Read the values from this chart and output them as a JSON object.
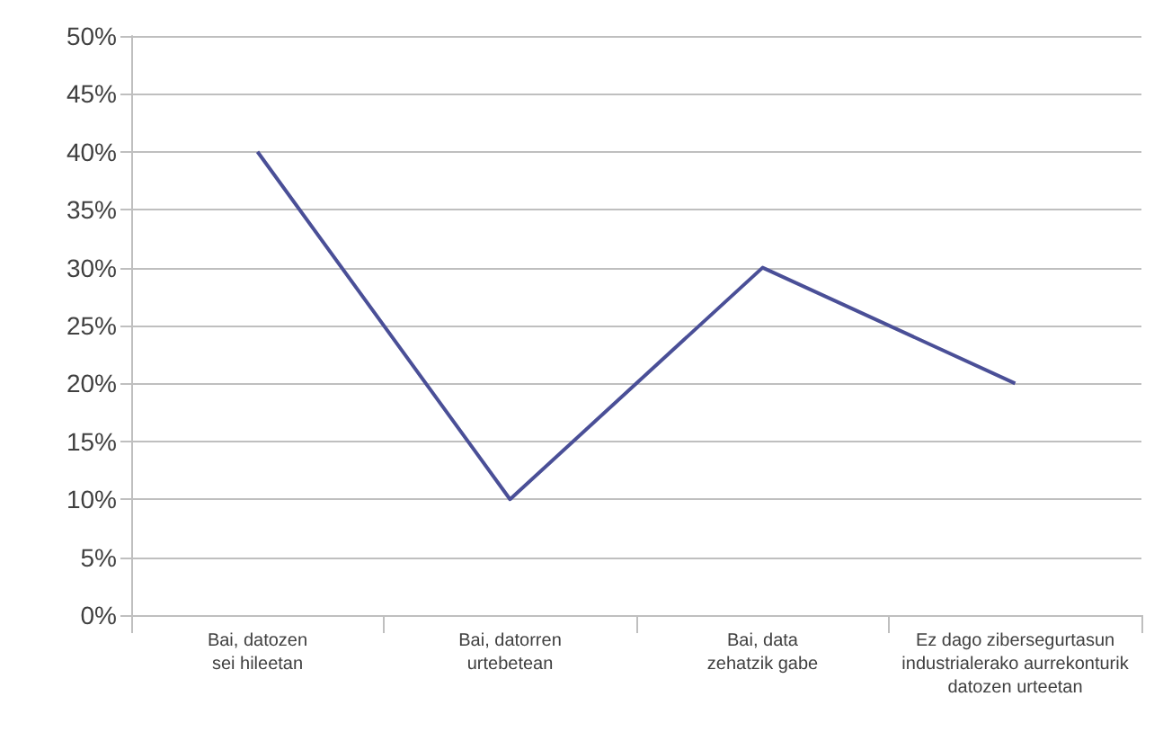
{
  "chart_data": {
    "type": "line",
    "categories": [
      "Bai, datozen\nsei hileetan",
      "Bai, datorren\nurtebetean",
      "Bai, data\nzehatzik gabe",
      "Ez dago zibersegurtasun\nindustrialerako aurrekonturik\ndatozen urteetan"
    ],
    "series": [
      {
        "color": "#4a4f97",
        "values": [
          40,
          10,
          30,
          20
        ]
      }
    ],
    "ylim": [
      0,
      50
    ],
    "yticks": [
      {
        "value": 0,
        "label": "0%"
      },
      {
        "value": 5,
        "label": "5%"
      },
      {
        "value": 10,
        "label": "10%"
      },
      {
        "value": 15,
        "label": "15%"
      },
      {
        "value": 20,
        "label": "20%"
      },
      {
        "value": 25,
        "label": "25%"
      },
      {
        "value": 30,
        "label": "30%"
      },
      {
        "value": 35,
        "label": "35%"
      },
      {
        "value": 40,
        "label": "40%"
      },
      {
        "value": 45,
        "label": "45%"
      },
      {
        "value": 50,
        "label": "50%"
      }
    ],
    "grid": "y",
    "marker": "none",
    "line_style": "solid"
  }
}
